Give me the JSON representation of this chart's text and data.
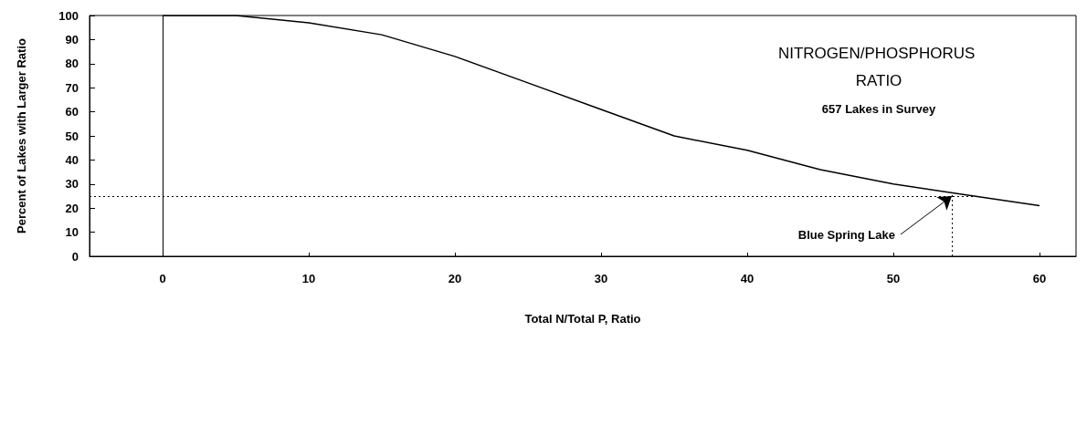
{
  "chart_data": {
    "type": "line",
    "title": "NITROGEN/PHOSPHORUS RATIO",
    "subtitle": "657 Lakes in Survey",
    "xlabel": "Total N/Total P, Ratio",
    "ylabel": "Percent of Lakes with Larger Ratio",
    "x": [
      0,
      5,
      10,
      15,
      20,
      25,
      30,
      35,
      40,
      45,
      50,
      55,
      60
    ],
    "series": [
      {
        "color": "#000000",
        "values": [
          100,
          100,
          97,
          92,
          83,
          72,
          61,
          50,
          44,
          36,
          30,
          25.5,
          21
        ]
      }
    ],
    "xlim": [
      -5,
      62.5
    ],
    "xticks": [
      0,
      10,
      20,
      30,
      40,
      50,
      60
    ],
    "ylim": [
      0,
      100
    ],
    "yticks": [
      0,
      10,
      20,
      30,
      40,
      50,
      60,
      70,
      80,
      90,
      100
    ],
    "grid": false,
    "legend": false,
    "marker": "none",
    "line_style": "solid",
    "ref_lines": [
      {
        "axis": "x",
        "value": 0,
        "line_style": "solid"
      },
      {
        "axis": "x",
        "value": 54,
        "line_style": "dotted"
      },
      {
        "axis": "y",
        "value": 25,
        "line_style": "dotted"
      }
    ],
    "annotations": [
      {
        "text": "Blue Spring Lake",
        "x": 54,
        "y": 25
      }
    ]
  }
}
